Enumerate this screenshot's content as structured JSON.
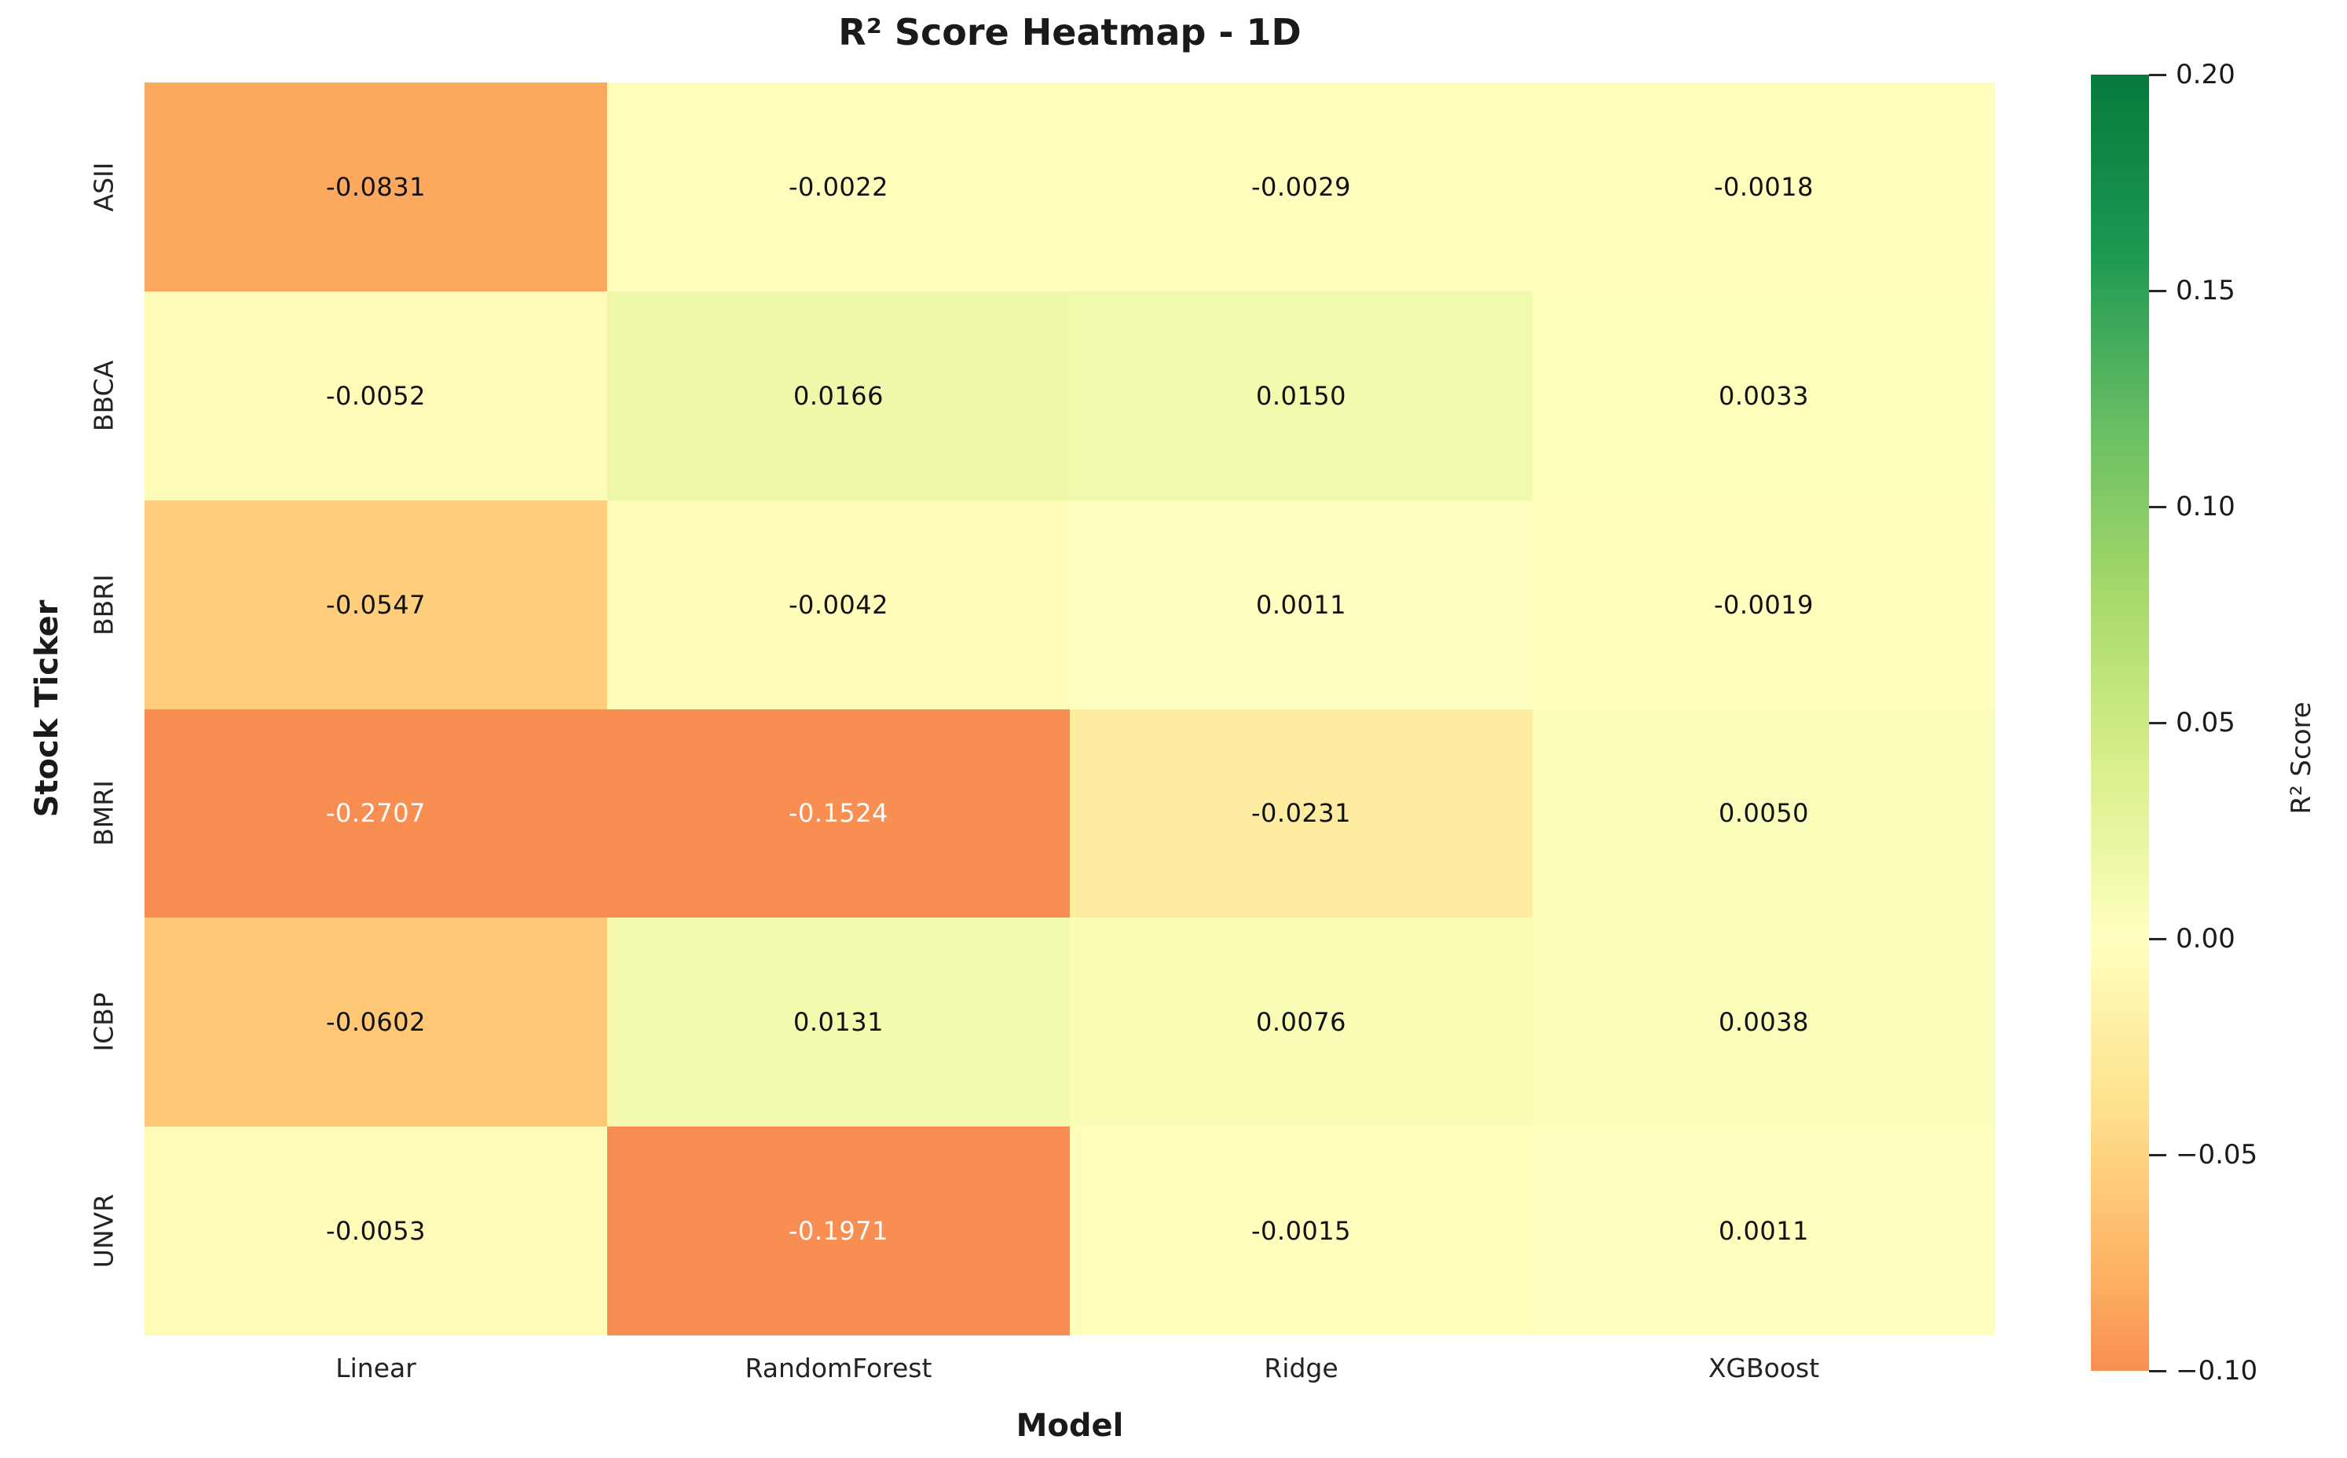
{
  "chart_data": {
    "type": "heatmap",
    "title": "R² Score Heatmap - 1D",
    "xlabel": "Model",
    "ylabel": "Stock Ticker",
    "columns": [
      "Linear",
      "RandomForest",
      "Ridge",
      "XGBoost"
    ],
    "rows": [
      "ASII",
      "BBCA",
      "BBRI",
      "BMRI",
      "ICBP",
      "UNVR"
    ],
    "values": [
      [
        -0.0831,
        -0.0022,
        -0.0029,
        -0.0018
      ],
      [
        -0.0052,
        0.0166,
        0.015,
        0.0033
      ],
      [
        -0.0547,
        -0.0042,
        0.0011,
        -0.0019
      ],
      [
        -0.2707,
        -0.1524,
        -0.0231,
        0.005
      ],
      [
        -0.0602,
        0.0131,
        0.0076,
        0.0038
      ],
      [
        -0.0053,
        -0.1971,
        -0.0015,
        0.0011
      ]
    ],
    "cell_labels": [
      [
        "-0.0831",
        "-0.0022",
        "-0.0029",
        "-0.0018"
      ],
      [
        "-0.0052",
        "0.0166",
        "0.0150",
        "0.0033"
      ],
      [
        "-0.0547",
        "-0.0042",
        "0.0011",
        "-0.0019"
      ],
      [
        "-0.2707",
        "-0.1524",
        "-0.0231",
        "0.0050"
      ],
      [
        "-0.0602",
        "0.0131",
        "0.0076",
        "0.0038"
      ],
      [
        "-0.0053",
        "-0.1971",
        "-0.0015",
        "0.0011"
      ]
    ],
    "annotation_text_colors": {
      "dark": "#111111",
      "light": "#ffffff"
    },
    "colorbar": {
      "label": "R² Score",
      "ticks": [
        "0.20",
        "0.15",
        "0.10",
        "0.05",
        "0.00",
        "−0.05",
        "−0.10"
      ],
      "vmin": -0.1,
      "vmax": 0.2
    },
    "colormap": {
      "name": "RdYlGn (clipped below -0.10)",
      "value_to_t": "clamp((v + 0.2) / 0.4, 0.25, 1.0)",
      "t_anchors": [
        0.2,
        0.3,
        0.4,
        0.5,
        0.6,
        0.7,
        0.8,
        0.9,
        1.0
      ],
      "anchor_colors": [
        "#f46d43",
        "#fdae61",
        "#fee08b",
        "#ffffbf",
        "#d9ef8b",
        "#a6d96a",
        "#66bd63",
        "#1a9850",
        "#077a3b"
      ],
      "white_text_below": -0.1
    }
  }
}
